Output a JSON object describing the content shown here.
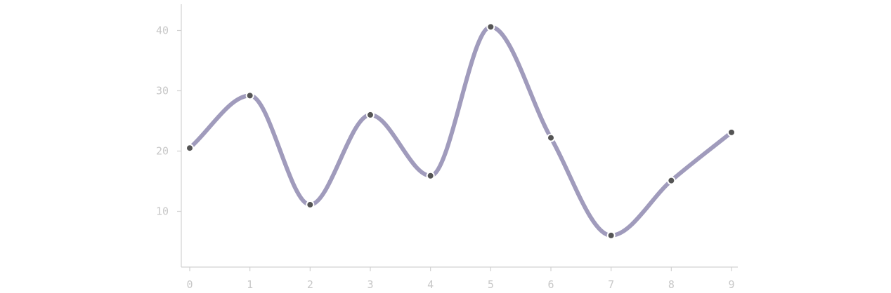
{
  "chart_data": {
    "type": "line",
    "curve": "smooth",
    "x": [
      0,
      1,
      2,
      3,
      4,
      5,
      6,
      7,
      8,
      9
    ],
    "y": [
      20.5,
      29.2,
      11.1,
      26.0,
      15.9,
      40.6,
      22.2,
      6.0,
      15.1,
      23.1
    ],
    "xlim": [
      0,
      9
    ],
    "ylim": [
      0,
      45
    ],
    "x_ticks": [
      "0",
      "1",
      "2",
      "3",
      "4",
      "5",
      "6",
      "7",
      "8",
      "9"
    ],
    "y_ticks": [
      "10",
      "20",
      "30",
      "40"
    ],
    "grid": false,
    "legend": "none",
    "title": "",
    "xlabel": "",
    "ylabel": "",
    "colors": {
      "line": "#a09bbc",
      "point": "#555555",
      "axis": "#d2d2d2",
      "tick_text": "#c8c8c8"
    }
  }
}
